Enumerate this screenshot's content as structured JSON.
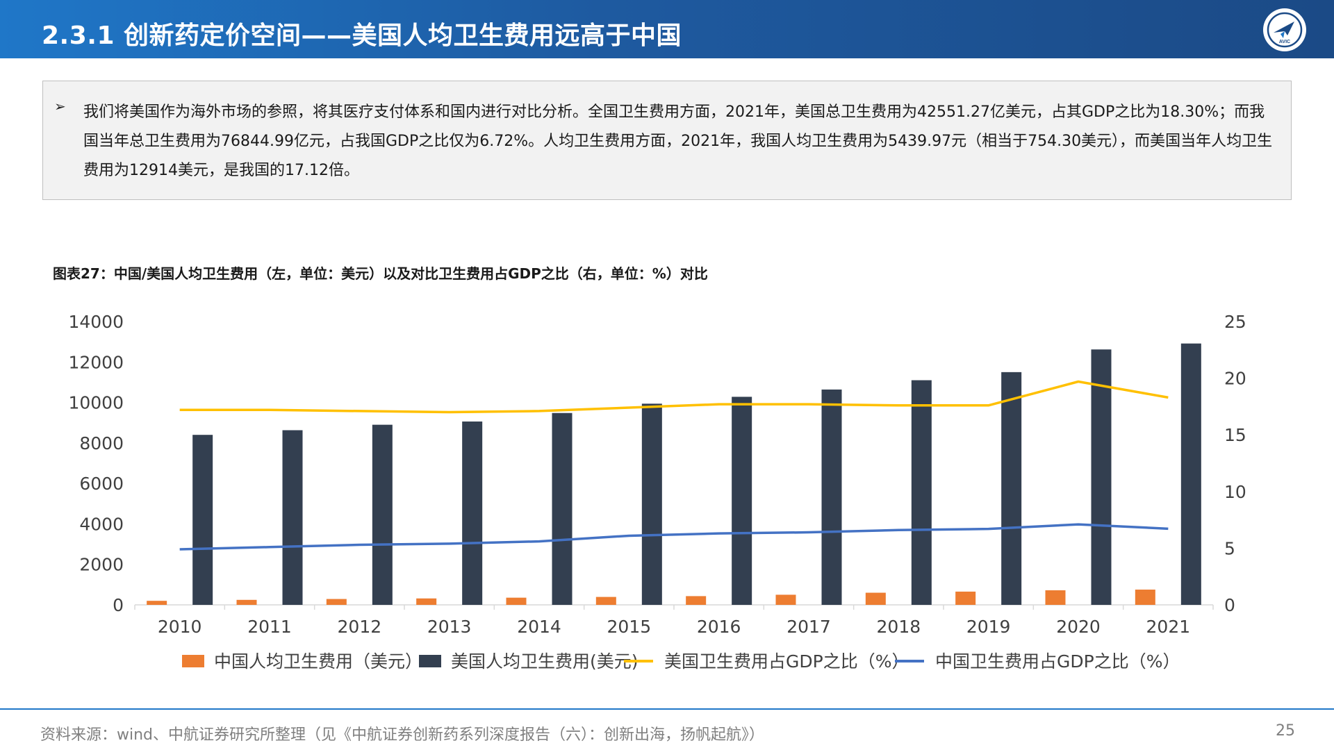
{
  "header": {
    "title": "2.3.1 创新药定价空间——美国人均卫生费用远高于中国",
    "logo_text": "AVIC"
  },
  "bullet": {
    "mark": "➢",
    "text": "我们将美国作为海外市场的参照，将其医疗支付体系和国内进行对比分析。全国卫生费用方面，2021年，美国总卫生费用为42551.27亿美元，占其GDP之比为18.30%；而我国当年总卫生费用为76844.99亿元，占我国GDP之比仅为6.72%。人均卫生费用方面，2021年，我国人均卫生费用为5439.97元（相当于754.30美元），而美国当年人均卫生费用为12914美元，是我国的17.12倍。"
  },
  "chart_title": "图表27：中国/美国人均卫生费用（左，单位：美元）以及对比卫生费用占GDP之比（右，单位：%）对比",
  "chart_data": {
    "type": "bar",
    "categories": [
      "2010",
      "2011",
      "2012",
      "2013",
      "2014",
      "2015",
      "2016",
      "2017",
      "2018",
      "2019",
      "2020",
      "2021"
    ],
    "series": [
      {
        "name": "中国人均卫生费用（美元）",
        "kind": "bar",
        "axis": "left",
        "color": "#ed7d31",
        "values": [
          200,
          247,
          290,
          318,
          355,
          392,
          432,
          500,
          600,
          655,
          720,
          754
        ]
      },
      {
        "name": "美国人均卫生费用(美元)",
        "kind": "bar",
        "axis": "left",
        "color": "#333f50",
        "values": [
          8400,
          8630,
          8900,
          9060,
          9480,
          9940,
          10280,
          10640,
          11100,
          11500,
          12620,
          12914
        ]
      },
      {
        "name": "美国卫生费用占GDP之比（%）",
        "kind": "line",
        "axis": "right",
        "color": "#ffc000",
        "values": [
          17.2,
          17.2,
          17.1,
          17.0,
          17.1,
          17.4,
          17.7,
          17.7,
          17.6,
          17.6,
          19.7,
          18.3
        ]
      },
      {
        "name": "中国卫生费用占GDP之比（%）",
        "kind": "line",
        "axis": "right",
        "color": "#4472c4",
        "values": [
          4.9,
          5.1,
          5.3,
          5.4,
          5.6,
          6.1,
          6.3,
          6.4,
          6.6,
          6.7,
          7.1,
          6.72
        ]
      }
    ],
    "y_left": {
      "min": 0,
      "max": 14000,
      "ticks": [
        0,
        2000,
        4000,
        6000,
        8000,
        10000,
        12000,
        14000
      ]
    },
    "y_right": {
      "min": 0,
      "max": 25,
      "ticks": [
        0,
        5,
        10,
        15,
        20,
        25
      ]
    },
    "grid": false,
    "legend_position": "bottom"
  },
  "footer": {
    "source": "资料来源：wind、中航证券研究所整理（见《中航证券创新药系列深度报告（六）：创新出海，扬帆起航》）",
    "page_number": "25"
  }
}
